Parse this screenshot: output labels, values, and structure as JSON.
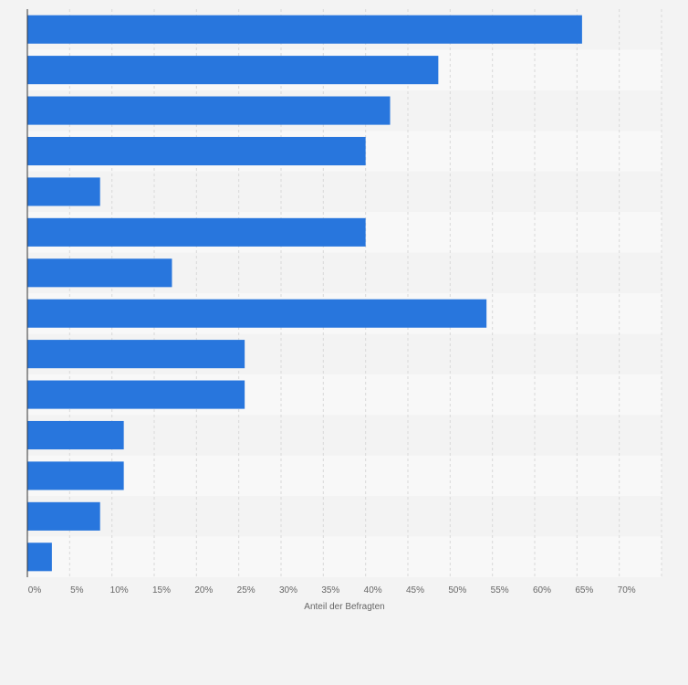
{
  "chart_data": {
    "type": "bar",
    "orientation": "horizontal",
    "title": "",
    "xlabel": "Anteil der Befragten",
    "ylabel": "",
    "categories": [
      "",
      "",
      "",
      "",
      "",
      "",
      "",
      "",
      "",
      "",
      "",
      "",
      "",
      ""
    ],
    "values": [
      65.6,
      48.6,
      42.9,
      40.0,
      8.6,
      40.0,
      17.1,
      54.3,
      25.7,
      25.7,
      11.4,
      11.4,
      8.6,
      2.9
    ],
    "xlim": [
      0,
      75
    ],
    "x_ticks": [
      "0%",
      "5%",
      "10%",
      "15%",
      "20%",
      "25%",
      "30%",
      "35%",
      "40%",
      "45%",
      "50%",
      "55%",
      "60%",
      "65%",
      "70%"
    ],
    "grid": true,
    "bar_color": "#2876dd",
    "band_colors": [
      "#f3f3f3",
      "#f8f8f8"
    ],
    "grid_color": "#d9d9d9"
  }
}
